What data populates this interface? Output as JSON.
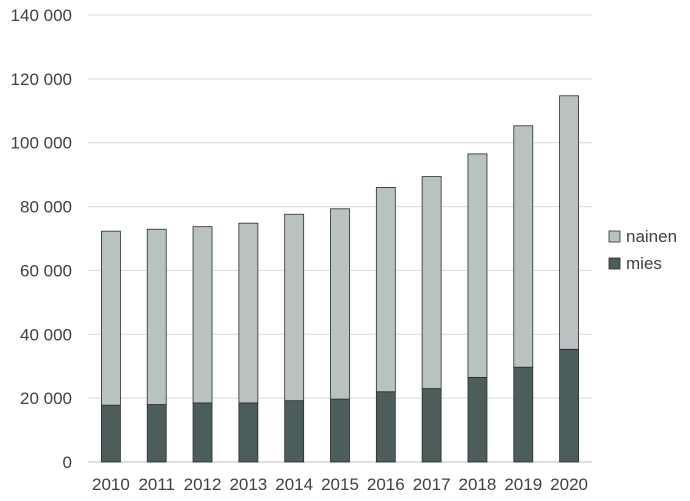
{
  "chart_data": {
    "type": "bar",
    "stacked": true,
    "categories": [
      "2010",
      "2011",
      "2012",
      "2013",
      "2014",
      "2015",
      "2016",
      "2017",
      "2018",
      "2019",
      "2020"
    ],
    "series": [
      {
        "name": "mies",
        "color": "#4d5d5b",
        "values": [
          17800,
          18000,
          18500,
          18500,
          19200,
          19700,
          22000,
          23000,
          26500,
          29700,
          35300
        ]
      },
      {
        "name": "nainen",
        "color": "#b8c2c0",
        "values": [
          54500,
          54900,
          55200,
          56300,
          58400,
          59600,
          64000,
          66400,
          70000,
          75600,
          79400
        ]
      }
    ],
    "ylim": [
      0,
      140000
    ],
    "yticks": [
      0,
      20000,
      40000,
      60000,
      80000,
      100000,
      120000,
      140000
    ],
    "ytick_labels": [
      "0",
      "20 000",
      "40 000",
      "60 000",
      "80 000",
      "100 000",
      "120 000",
      "140 000"
    ],
    "grid": true,
    "legend": {
      "placement": "right",
      "order": [
        "nainen",
        "mies"
      ]
    }
  }
}
